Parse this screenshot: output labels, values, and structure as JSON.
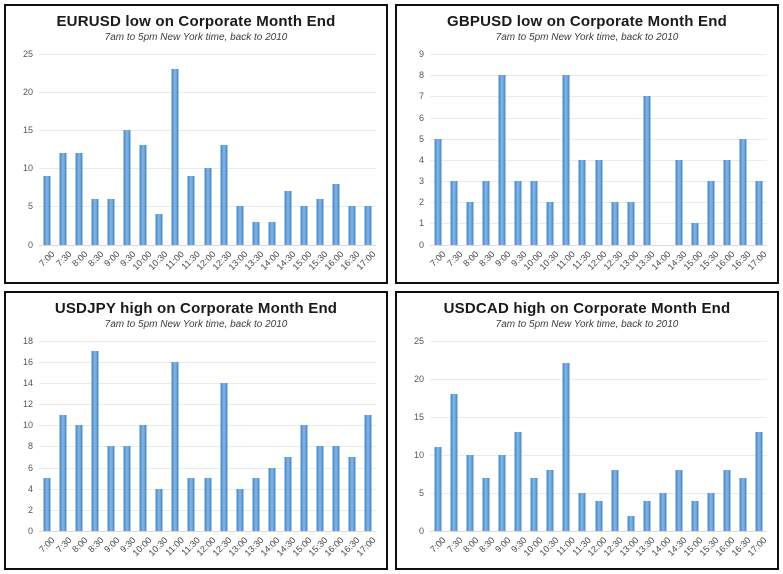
{
  "colors": {
    "bar_fill": "#5b9bd5",
    "bar_edge": "#4d8fd0",
    "bar_highlight": "#7db0e2",
    "gridline": "#ebebeb",
    "axis_line": "#d9d9d9",
    "title_text": "#1a1a1a",
    "subtitle_text": "#3d3d3d",
    "tick_text": "#555555",
    "panel_border": "#0e0e0e",
    "background": "#ffffff"
  },
  "chart_data": [
    {
      "type": "bar",
      "title": "EURUSD low on Corporate Month End",
      "subtitle": "7am to 5pm New York time, back to 2010",
      "xlabel": "",
      "ylabel": "",
      "categories": [
        "7:00",
        "7:30",
        "8:00",
        "8:30",
        "9:00",
        "9:30",
        "10:00",
        "10:30",
        "11:00",
        "11:30",
        "12:00",
        "12:30",
        "13:00",
        "13:30",
        "14:00",
        "14:30",
        "15:00",
        "15:30",
        "16:00",
        "16:30",
        "17:00"
      ],
      "values": [
        9,
        12,
        12,
        6,
        6,
        15,
        13,
        4,
        23,
        9,
        10,
        13,
        5,
        3,
        3,
        7,
        5,
        6,
        8,
        5,
        5
      ],
      "ylim": [
        0,
        25
      ],
      "ytick_step": 5,
      "grid": true,
      "legend": false,
      "x_labels_rotated_deg": 45
    },
    {
      "type": "bar",
      "title": "GBPUSD low on Corporate Month End",
      "subtitle": "7am to 5pm New York time, back to 2010",
      "xlabel": "",
      "ylabel": "",
      "categories": [
        "7:00",
        "7:30",
        "8:00",
        "8:30",
        "9:00",
        "9:30",
        "10:00",
        "10:30",
        "11:00",
        "11:30",
        "12:00",
        "12:30",
        "13:00",
        "13:30",
        "14:00",
        "14:30",
        "15:00",
        "15:30",
        "16:00",
        "16:30",
        "17:00"
      ],
      "values": [
        5,
        3,
        2,
        3,
        8,
        3,
        3,
        2,
        8,
        4,
        4,
        2,
        2,
        7,
        0,
        4,
        1,
        3,
        4,
        5,
        3
      ],
      "ylim": [
        0,
        9
      ],
      "ytick_step": 1,
      "grid": true,
      "legend": false,
      "x_labels_rotated_deg": 45
    },
    {
      "type": "bar",
      "title": "USDJPY high on Corporate Month End",
      "subtitle": "7am to 5pm New York time, back to 2010",
      "xlabel": "",
      "ylabel": "",
      "categories": [
        "7:00",
        "7:30",
        "8:00",
        "8:30",
        "9:00",
        "9:30",
        "10:00",
        "10:30",
        "11:00",
        "11:30",
        "12:00",
        "12:30",
        "13:00",
        "13:30",
        "14:00",
        "14:30",
        "15:00",
        "15:30",
        "16:00",
        "16:30",
        "17:00"
      ],
      "values": [
        5,
        11,
        10,
        17,
        8,
        8,
        10,
        4,
        16,
        5,
        5,
        14,
        4,
        5,
        6,
        7,
        10,
        8,
        8,
        7,
        11
      ],
      "ylim": [
        0,
        18
      ],
      "ytick_step": 2,
      "grid": true,
      "legend": false,
      "x_labels_rotated_deg": 45
    },
    {
      "type": "bar",
      "title": "USDCAD high on Corporate Month End",
      "subtitle": "7am to 5pm New York time, back to 2010",
      "xlabel": "",
      "ylabel": "",
      "categories": [
        "7:00",
        "7:30",
        "8:00",
        "8:30",
        "9:00",
        "9:30",
        "10:00",
        "10:30",
        "11:00",
        "11:30",
        "12:00",
        "12:30",
        "13:00",
        "13:30",
        "14:00",
        "14:30",
        "15:00",
        "15:30",
        "16:00",
        "16:30",
        "17:00"
      ],
      "values": [
        11,
        18,
        10,
        7,
        10,
        13,
        7,
        8,
        22,
        5,
        4,
        8,
        2,
        4,
        5,
        8,
        4,
        5,
        8,
        7,
        13
      ],
      "ylim": [
        0,
        25
      ],
      "ytick_step": 5,
      "grid": true,
      "legend": false,
      "x_labels_rotated_deg": 45
    }
  ]
}
